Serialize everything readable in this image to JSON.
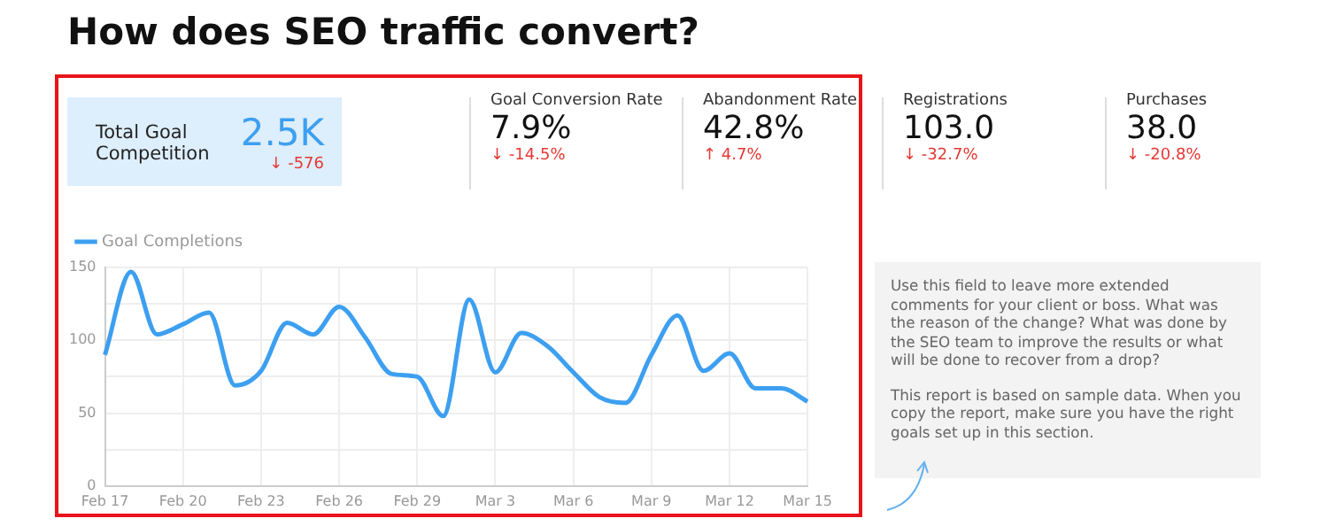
{
  "chart_data": [
    {
      "type": "other",
      "title": "How does SEO traffic convert?",
      "annotations": [
        "Total Goal Competition",
        "2.5K",
        "↓ -576",
        "Goal Conversion Rate",
        "7.9%",
        "↓ -14.5%",
        "Abandonment Rate",
        "42.8%",
        "↑ 4.7%",
        "Registrations",
        "103.0",
        "↓ -32.7%",
        "Purchases",
        "38.0",
        "↓ -20.8%"
      ]
    },
    {
      "type": "line",
      "categories": [
        "Feb 17",
        null,
        null,
        "Feb 20",
        null,
        null,
        "Feb 23",
        null,
        null,
        "Feb 26",
        null,
        null,
        "Feb 29",
        null,
        null,
        "Mar 3",
        null,
        null,
        "Mar 6",
        null,
        null,
        "Mar 9",
        null,
        null,
        "Mar 12",
        null,
        null,
        "Mar 15"
      ],
      "series": [
        {
          "name": "Goal Completions",
          "color": "#3d9ff0",
          "values": [
            90,
            147,
            104,
            111,
            119,
            69,
            79,
            112,
            104,
            123,
            102,
            77,
            75,
            48,
            128,
            78,
            105,
            96,
            78,
            61,
            57,
            90,
            117,
            79,
            91,
            67,
            67,
            58
          ]
        }
      ],
      "ylim": [
        0,
        150
      ],
      "yticks": [
        0,
        {
          "value": 25,
          "label": null
        },
        50,
        {
          "value": 75,
          "label": null
        },
        100,
        {
          "value": 125,
          "label": null
        },
        150
      ],
      "grid": true,
      "legend": "top left",
      "marker": "none",
      "line_style": "solid"
    },
    {
      "type": "other",
      "annotations": [
        "Use this field to leave more extended comments for your client or boss. What was the reason of the change? What was done by the SEO team to improve the results or what will be done to recover from a drop?",
        "This report is based on sample data. When you copy the report, make sure you have the right goals set up in this section."
      ]
    }
  ]
}
